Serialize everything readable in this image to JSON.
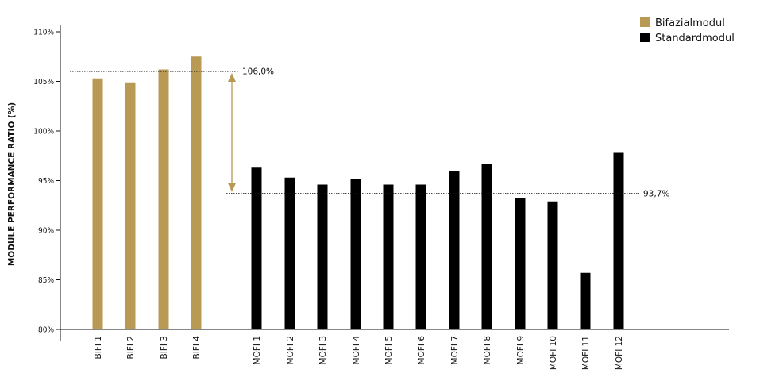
{
  "chart_data": {
    "type": "bar",
    "ylabel": "MODULE PERFORMANCE RATIO (%)",
    "ylim": [
      80,
      110
    ],
    "yticks": [
      "80%",
      "85%",
      "90%",
      "95%",
      "100%",
      "105%",
      "110%"
    ],
    "ytick_values": [
      80,
      85,
      90,
      95,
      100,
      105,
      110
    ],
    "grid": false,
    "legend_position": "top-right",
    "series": [
      {
        "name": "Bifazialmodul",
        "color": "#b89a55",
        "categories": [
          "BIFI 1",
          "BIFI 2",
          "BIFI 3",
          "BIFI 4"
        ],
        "values": [
          105.3,
          104.9,
          106.2,
          107.5
        ]
      },
      {
        "name": "Standardmodul",
        "color": "#000000",
        "categories": [
          "MOFI 1",
          "MOFI 2",
          "MOFI 3",
          "MOFI 4",
          "MOFI 5",
          "MOFI 6",
          "MOFI 7",
          "MOFI 8",
          "MOFI 9",
          "MOFI 10",
          "MOFI 11",
          "MOFI 12"
        ],
        "values": [
          96.3,
          95.3,
          94.6,
          95.2,
          94.6,
          94.6,
          96.0,
          96.7,
          93.2,
          92.9,
          85.7,
          97.8
        ]
      }
    ],
    "reference_lines": [
      {
        "value": 106.0,
        "label": "106,0%"
      },
      {
        "value": 93.7,
        "label": "93,7%"
      }
    ],
    "arrow_color": "#b89a55"
  }
}
